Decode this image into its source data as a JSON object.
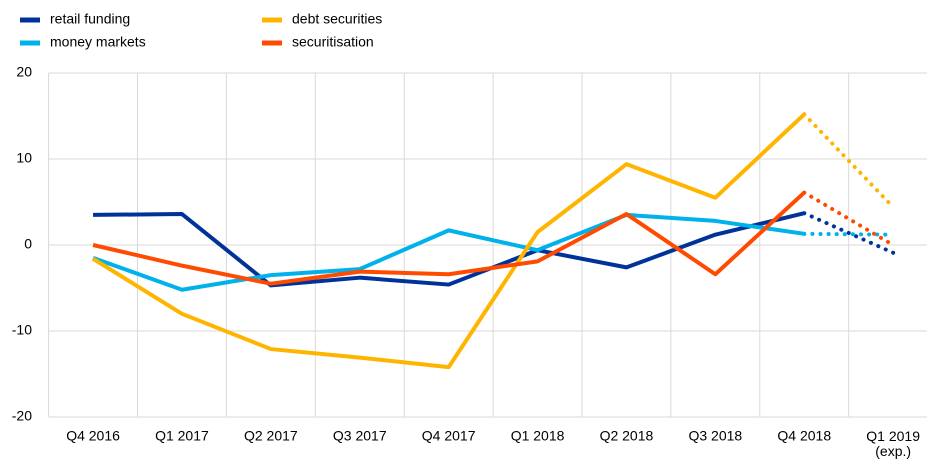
{
  "chart_data": {
    "type": "line",
    "categories": [
      "Q4 2016",
      "Q1 2017",
      "Q2 2017",
      "Q3 2017",
      "Q4 2017",
      "Q1 2018",
      "Q2 2018",
      "Q3 2018",
      "Q4 2018",
      "Q1 2019\n(exp.)"
    ],
    "series": [
      {
        "name": "retail funding",
        "color": "#003299",
        "values": [
          3.5,
          3.6,
          -4.7,
          -3.8,
          -4.6,
          -0.6,
          -2.6,
          1.2,
          3.7,
          -0.9
        ]
      },
      {
        "name": "money markets",
        "color": "#00b1ea",
        "values": [
          -1.5,
          -5.2,
          -3.5,
          -2.8,
          1.7,
          -0.6,
          3.5,
          2.8,
          1.3,
          1.2
        ]
      },
      {
        "name": "debt securities",
        "color": "#ffb400",
        "values": [
          -1.6,
          -8.0,
          -12.1,
          -13.1,
          -14.2,
          1.5,
          9.4,
          5.5,
          15.2,
          4.4
        ]
      },
      {
        "name": "securitisation",
        "color": "#ff4b00",
        "values": [
          0,
          -2.4,
          -4.5,
          -3.1,
          -3.4,
          -1.9,
          3.6,
          -3.4,
          6.1,
          0
        ]
      }
    ],
    "ylim": [
      -20,
      20
    ],
    "yticks": [
      -20,
      -10,
      0,
      10,
      20
    ],
    "grid": true,
    "dotted_last_segment": true,
    "legend": "top-left"
  }
}
